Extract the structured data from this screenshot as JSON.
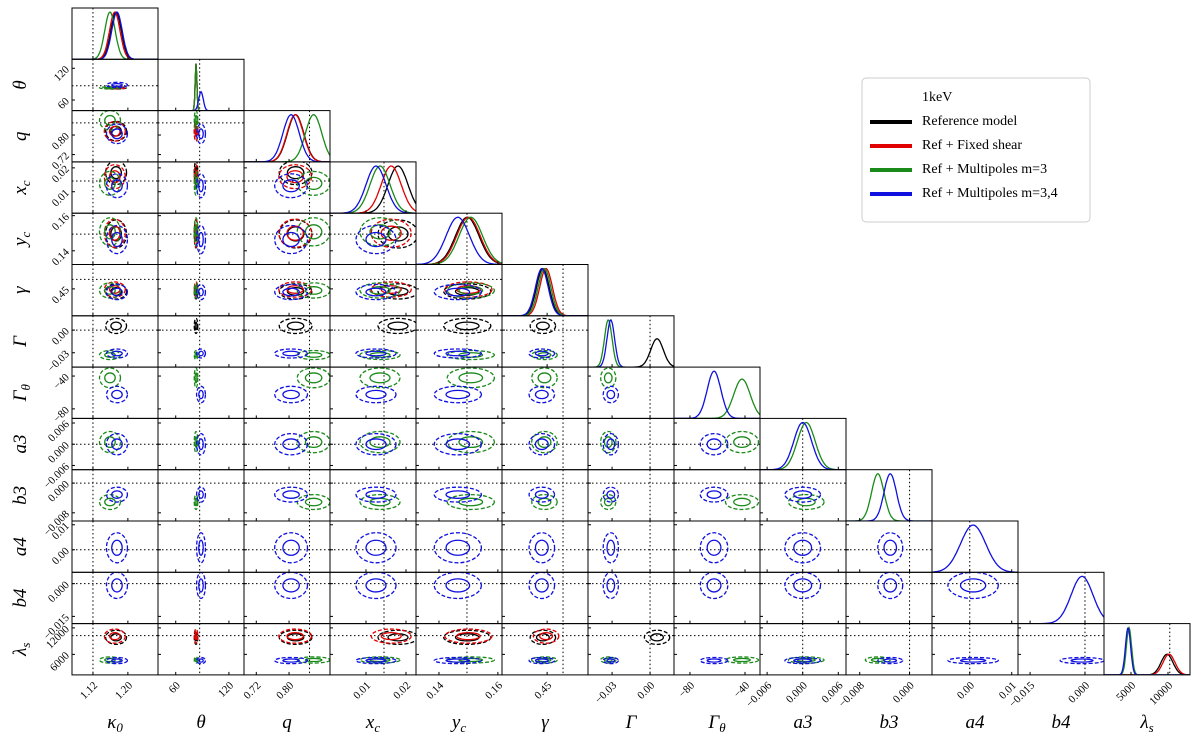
{
  "chart_data": {
    "type": "corner",
    "params": [
      {
        "symbol": "κ",
        "sub": "0",
        "lim": [
          1.072,
          1.269
        ],
        "ticks": [
          1.12,
          {
            "value": 1.2,
            "label": "1.20"
          }
        ],
        "truth": 1.12
      },
      {
        "symbol": "θ",
        "sub": null,
        "lim": [
          40,
          137
        ],
        "ticks": [
          60,
          120
        ],
        "truth": 87
      },
      {
        "symbol": "q",
        "sub": null,
        "lim": [
          0.69,
          0.9
        ],
        "ticks": [
          0.72,
          {
            "value": 0.8,
            "label": "0.80"
          }
        ],
        "truth": 0.85
      },
      {
        "symbol": "x",
        "sub": "c",
        "lim": [
          0.001,
          0.0225
        ],
        "ticks": [
          0.01,
          0.02
        ],
        "truth": 0.0145
      },
      {
        "symbol": "y",
        "sub": "c",
        "lim": [
          0.1322,
          0.1614
        ],
        "ticks": [
          0.14,
          0.16
        ],
        "truth": 0.1495
      },
      {
        "symbol": "γ",
        "sub": null,
        "lim": [
          0.365,
          0.527
        ],
        "ticks": [
          0.45
        ],
        "truth": 0.48
      },
      {
        "symbol": "Γ",
        "sub": null,
        "lim": [
          -0.049,
          0.0189
        ],
        "ticks": [
          {
            "value": -0.03,
            "label": "−0.03"
          },
          {
            "value": 0,
            "label": "0.00"
          }
        ],
        "truth": 0
      },
      {
        "symbol": "Γ",
        "sub": "θ",
        "lim": [
          -91.6,
          -29.1
        ],
        "ticks": [
          {
            "value": -80,
            "label": "−80"
          },
          {
            "value": -40,
            "label": "−40"
          }
        ],
        "truth": null
      },
      {
        "symbol": "a3",
        "sub": null,
        "lim": [
          -0.0072,
          0.0073
        ],
        "ticks": [
          {
            "value": -0.006,
            "label": "−0.006"
          },
          {
            "value": 0,
            "label": "0.000"
          },
          {
            "value": 0.006,
            "label": "0.006"
          }
        ],
        "truth": 0
      },
      {
        "symbol": "b3",
        "sub": null,
        "lim": [
          -0.0102,
          0.0036
        ],
        "ticks": [
          {
            "value": -0.008,
            "label": "−0.008"
          },
          {
            "value": 0,
            "label": "0.000"
          }
        ],
        "truth": 0
      },
      {
        "symbol": "a4",
        "sub": null,
        "lim": [
          -0.009,
          0.0115
        ],
        "ticks": [
          {
            "value": 0,
            "label": "0.00"
          },
          0.01
        ],
        "truth": 0
      },
      {
        "symbol": "b4",
        "sub": null,
        "lim": [
          -0.0183,
          0.0052
        ],
        "ticks": [
          {
            "value": -0.015,
            "label": "−0.015"
          },
          {
            "value": 0,
            "label": "0.000"
          }
        ],
        "truth": 0
      },
      {
        "symbol": "λ",
        "sub": "s",
        "lim": [
          1351,
          12973
        ],
        "ticks": [
          5000,
          10000
        ],
        "yticks": [
          6000,
          12000
        ],
        "truth": 10240
      }
    ],
    "series": [
      {
        "name": "Reference model",
        "color": "#000000",
        "means": [
          1.173,
          82.9,
          0.816,
          0.018,
          0.1496,
          0.442,
          0.0055,
          null,
          null,
          null,
          null,
          null,
          9865
        ],
        "sigmas": [
          0.012,
          1,
          0.02,
          0.0025,
          0.004,
          0.012,
          0.005,
          null,
          null,
          null,
          null,
          null,
          800
        ]
      },
      {
        "name": "Ref + Fixed shear",
        "color": "#e00000",
        "means": [
          1.17,
          82.9,
          0.815,
          0.0163,
          0.15,
          0.448,
          null,
          null,
          null,
          null,
          null,
          null,
          10135
        ],
        "sigmas": [
          0.012,
          1,
          0.02,
          0.0025,
          0.004,
          0.012,
          null,
          null,
          null,
          null,
          null,
          null,
          800
        ]
      },
      {
        "name": "Ref + Multipoles m=3",
        "color": "#1a8a1a",
        "means": [
          1.159,
          82.9,
          0.86,
          0.0135,
          0.1508,
          0.445,
          -0.033,
          -42.2,
          0.0006,
          -0.0051,
          null,
          null,
          4730
        ],
        "sigmas": [
          0.012,
          1,
          0.02,
          0.0025,
          0.004,
          0.012,
          0.003,
          6,
          0.0015,
          0.001,
          null,
          null,
          350
        ]
      },
      {
        "name": "Ref + Multipoles m=3,4",
        "color": "#1010e0",
        "means": [
          1.175,
          88.5,
          0.805,
          0.0125,
          0.1464,
          0.44,
          -0.031,
          -62.5,
          0,
          -0.0031,
          0.0008,
          -0.0008,
          4600
        ],
        "sigmas": [
          0.012,
          2.5,
          0.02,
          0.0025,
          0.004,
          0.012,
          0.003,
          5,
          0.0015,
          0.001,
          0.003,
          0.003,
          350
        ]
      }
    ],
    "legend": {
      "title": "1keV",
      "loc": "upper right"
    }
  }
}
